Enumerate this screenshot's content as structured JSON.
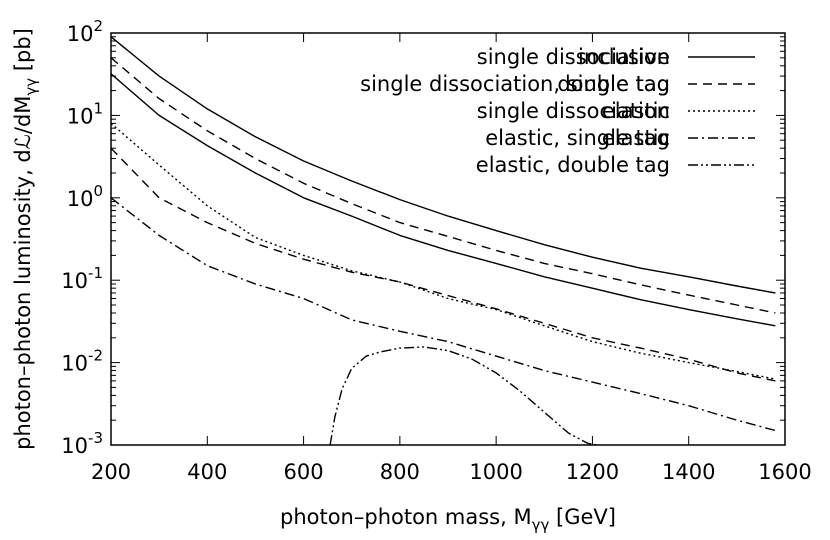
{
  "chart_data": {
    "type": "line",
    "xlabel": "photon–photon mass, M",
    "xlabel_sub": "γγ",
    "xlabel_unit": " [GeV]",
    "ylabel": "photon–photon luminosity, dℒ/dM",
    "ylabel_sub": "γγ",
    "ylabel_unit": " [pb]",
    "xlim": [
      200,
      1600
    ],
    "ylim": [
      0.001,
      100
    ],
    "yscale": "log",
    "x_ticks": [
      200,
      400,
      600,
      800,
      1000,
      1200,
      1400,
      1600
    ],
    "y_ticks": [
      {
        "value": 0.001,
        "base": "10",
        "exp": "-3"
      },
      {
        "value": 0.01,
        "base": "10",
        "exp": "-2"
      },
      {
        "value": 0.1,
        "base": "10",
        "exp": "-1"
      },
      {
        "value": 1,
        "base": "10",
        "exp": "0"
      },
      {
        "value": 10,
        "base": "10",
        "exp": "1"
      },
      {
        "value": 100,
        "base": "10",
        "exp": "2"
      }
    ],
    "legend_position": "top-right",
    "legend": [
      {
        "label_back": "single dissociation",
        "label_front": "inclusive",
        "style": "solid"
      },
      {
        "label_back": "single dissociation, single tag",
        "label_front": "double tag",
        "style": "dashed"
      },
      {
        "label_back": "single dissociation",
        "label_front": "elastic",
        "style": "dotted"
      },
      {
        "label_back": "elastic, single tag",
        "label_front": "elastic",
        "style": "dashdot"
      },
      {
        "label_back": "",
        "label_front": "elastic, double tag",
        "style": "dashdotdot"
      }
    ],
    "series": [
      {
        "name": "inclusive",
        "style": "solid",
        "x": [
          200,
          300,
          400,
          500,
          600,
          700,
          800,
          900,
          1000,
          1100,
          1200,
          1300,
          1400,
          1500,
          1580
        ],
        "y": [
          90,
          30,
          12,
          5.5,
          2.8,
          1.6,
          0.95,
          0.6,
          0.4,
          0.27,
          0.19,
          0.14,
          0.11,
          0.085,
          0.07
        ]
      },
      {
        "name": "single dissociation",
        "style": "solid",
        "x": [
          200,
          300,
          400,
          500,
          600,
          700,
          800,
          900,
          1000,
          1100,
          1200,
          1300,
          1400,
          1500,
          1580
        ],
        "y": [
          32,
          10,
          4.3,
          2.0,
          1.0,
          0.6,
          0.35,
          0.23,
          0.16,
          0.11,
          0.08,
          0.058,
          0.044,
          0.034,
          0.028
        ]
      },
      {
        "name": "double tag",
        "style": "dashed",
        "x": [
          200,
          300,
          400,
          500,
          600,
          700,
          800,
          900,
          1000,
          1100,
          1200,
          1300,
          1400,
          1500,
          1580
        ],
        "y": [
          50,
          16,
          6.5,
          3.0,
          1.5,
          0.85,
          0.5,
          0.34,
          0.23,
          0.16,
          0.12,
          0.088,
          0.066,
          0.05,
          0.04
        ]
      },
      {
        "name": "single dissociation, single tag",
        "style": "dashed",
        "x": [
          200,
          300,
          400,
          500,
          600,
          700,
          800,
          900,
          1000,
          1100,
          1200,
          1300,
          1400,
          1500,
          1580
        ],
        "y": [
          4.0,
          1.0,
          0.5,
          0.28,
          0.18,
          0.125,
          0.095,
          0.065,
          0.045,
          0.03,
          0.02,
          0.015,
          0.011,
          0.0075,
          0.006
        ]
      },
      {
        "name": "elastic",
        "style": "dotted",
        "x": [
          200,
          300,
          400,
          500,
          600,
          700,
          800,
          900,
          1000,
          1100,
          1200,
          1300,
          1400,
          1500,
          1580
        ],
        "y": [
          8.0,
          2.5,
          0.8,
          0.33,
          0.2,
          0.13,
          0.095,
          0.06,
          0.044,
          0.028,
          0.018,
          0.013,
          0.01,
          0.0078,
          0.0063
        ]
      },
      {
        "name": "elastic, single tag",
        "style": "dashdot",
        "x": [
          200,
          300,
          400,
          500,
          600,
          700,
          800,
          900,
          1000,
          1100,
          1200,
          1300,
          1400,
          1500,
          1580
        ],
        "y": [
          1.0,
          0.35,
          0.15,
          0.09,
          0.06,
          0.033,
          0.024,
          0.018,
          0.012,
          0.008,
          0.0058,
          0.0042,
          0.003,
          0.002,
          0.0015
        ]
      },
      {
        "name": "elastic, double tag",
        "style": "dashdotdot",
        "x": [
          655,
          665,
          680,
          700,
          730,
          760,
          800,
          850,
          900,
          950,
          1000,
          1050,
          1100,
          1150,
          1190,
          1210
        ],
        "y": [
          0.001,
          0.0022,
          0.0048,
          0.0085,
          0.012,
          0.0135,
          0.015,
          0.0155,
          0.014,
          0.011,
          0.0075,
          0.0045,
          0.0025,
          0.0014,
          0.00105,
          0.001
        ]
      }
    ]
  }
}
